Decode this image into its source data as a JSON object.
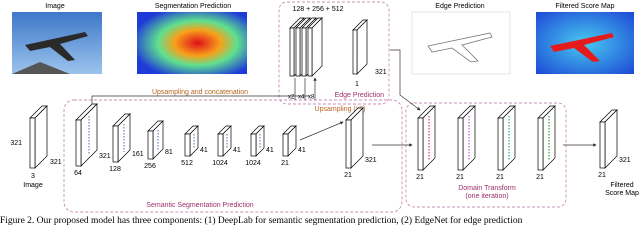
{
  "top_images": [
    "Image",
    "Segmentation Prediction",
    "Edge Prediction",
    "Filtered  Score Map"
  ],
  "edgenet": {
    "channels": "128 + 256 + 512",
    "output_channels": "1",
    "size": "321",
    "label": "Edge Prediction",
    "scales": [
      "x2",
      "x4",
      "x8"
    ]
  },
  "segmentation": {
    "upsampling_concat": "Upsampling and concatenation",
    "upsampling": "Upsampling (x8)",
    "label": "Semantic Segmentation Prediction",
    "input": {
      "height": "321",
      "width": "321",
      "channels": "3",
      "label": "Image"
    },
    "blocks": [
      {
        "size": "321",
        "channels": "64"
      },
      {
        "size": "161",
        "channels": "128"
      },
      {
        "size": "81",
        "channels": "256"
      },
      {
        "size": "41",
        "channels": "512"
      },
      {
        "size": "41",
        "channels": "1024"
      },
      {
        "size": "41",
        "channels": "1024"
      },
      {
        "size": "41",
        "channels": "21"
      },
      {
        "size": "321",
        "channels": "21"
      }
    ]
  },
  "domain_transform": {
    "label": "Domain Transform",
    "sublabel": "(one iteration)",
    "channels": [
      "21",
      "21",
      "21",
      "21"
    ]
  },
  "output": {
    "size": "321",
    "channels": "21",
    "label": "Filtered\nScore Map"
  },
  "caption": "Figure 2. Our proposed model has three components: (1) DeepLab for semantic segmentation prediction, (2) EdgeNet for edge prediction"
}
